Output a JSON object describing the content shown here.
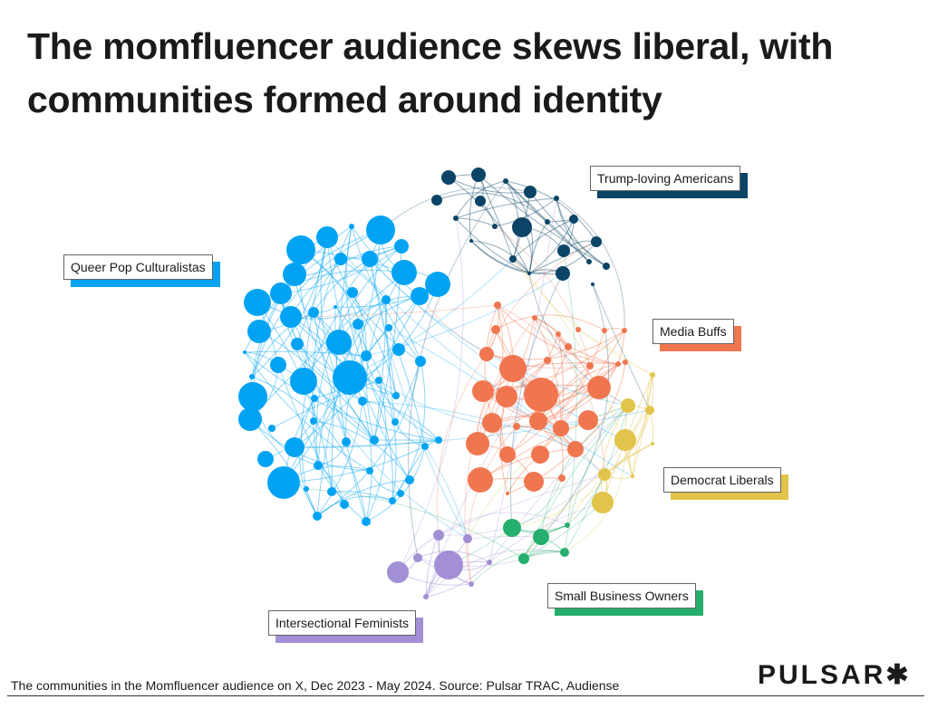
{
  "title": "The momfluencer audience skews liberal, with communities formed around identity",
  "communities": [
    {
      "key": "navy",
      "label": "Trump-loving Americans",
      "color": "#0b4466"
    },
    {
      "key": "blue",
      "label": "Queer Pop Culturalistas",
      "color": "#03a3f3"
    },
    {
      "key": "orange",
      "label": "Media Buffs",
      "color": "#f07650"
    },
    {
      "key": "yellow",
      "label": "Democrat Liberals",
      "color": "#e2c44a"
    },
    {
      "key": "green",
      "label": "Small Business Owners",
      "color": "#25ae6e"
    },
    {
      "key": "purple",
      "label": "Intersectional Feminists",
      "color": "#a28fd6"
    }
  ],
  "footer": "The communities in the Momfluencer audience on X, Dec 2023 - May 2024. Source: Pulsar TRAC, Audiense",
  "logo": "PULSAR✱"
}
